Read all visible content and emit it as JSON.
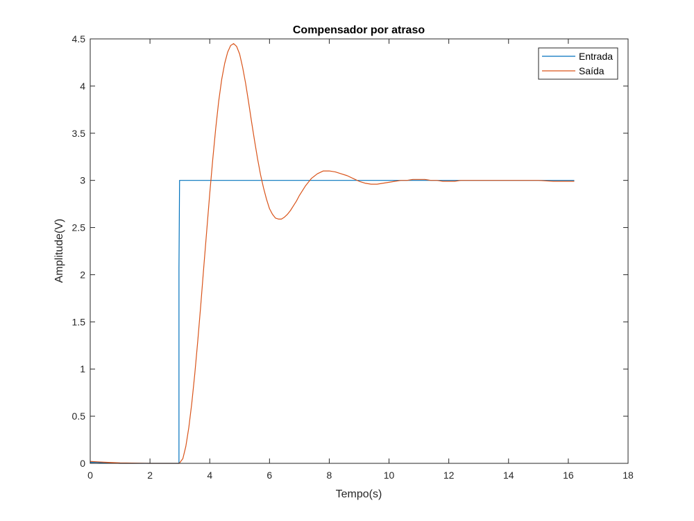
{
  "chart_data": {
    "type": "line",
    "title": "Compensador por atraso",
    "xlabel": "Tempo(s)",
    "ylabel": "Amplitude(V)",
    "xlim": [
      0,
      18
    ],
    "ylim": [
      0,
      4.5
    ],
    "xticks": [
      0,
      2,
      4,
      6,
      8,
      10,
      12,
      14,
      16,
      18
    ],
    "yticks": [
      0,
      0.5,
      1,
      1.5,
      2,
      2.5,
      3,
      3.5,
      4,
      4.5
    ],
    "grid": false,
    "legend_position": "top-right",
    "series": [
      {
        "name": "Entrada",
        "color": "#0072BD",
        "x": [
          0,
          0.2,
          0.5,
          1.0,
          2.0,
          2.95,
          2.97,
          2.97,
          2.99,
          16.2
        ],
        "y": [
          0.01,
          0.01,
          0.005,
          0.0,
          0.0,
          0.0,
          0.0,
          2.07,
          3.0,
          3.0
        ]
      },
      {
        "name": "Saída",
        "color": "#D95319",
        "x": [
          0,
          0.3,
          0.6,
          1.0,
          2.0,
          2.98,
          3.1,
          3.2,
          3.3,
          3.4,
          3.5,
          3.6,
          3.7,
          3.8,
          3.9,
          4.0,
          4.1,
          4.2,
          4.3,
          4.4,
          4.5,
          4.6,
          4.7,
          4.8,
          4.9,
          5.0,
          5.1,
          5.2,
          5.3,
          5.4,
          5.5,
          5.6,
          5.7,
          5.8,
          5.9,
          6.0,
          6.1,
          6.2,
          6.3,
          6.4,
          6.5,
          6.6,
          6.7,
          6.8,
          6.9,
          7.0,
          7.2,
          7.4,
          7.6,
          7.8,
          8.0,
          8.2,
          8.4,
          8.6,
          8.8,
          9.0,
          9.2,
          9.4,
          9.6,
          9.8,
          10.0,
          10.2,
          10.4,
          10.6,
          10.8,
          11.0,
          11.2,
          11.4,
          11.6,
          11.8,
          12.0,
          12.2,
          12.4,
          12.6,
          12.8,
          13.0,
          13.5,
          14.0,
          14.5,
          15.0,
          15.5,
          16.0,
          16.2
        ],
        "y": [
          0.02,
          0.015,
          0.01,
          0.005,
          0.0,
          0.0,
          0.05,
          0.18,
          0.38,
          0.64,
          0.95,
          1.3,
          1.68,
          2.08,
          2.47,
          2.86,
          3.22,
          3.55,
          3.84,
          4.07,
          4.24,
          4.36,
          4.43,
          4.45,
          4.42,
          4.34,
          4.2,
          4.03,
          3.83,
          3.62,
          3.42,
          3.23,
          3.06,
          2.92,
          2.8,
          2.7,
          2.64,
          2.6,
          2.59,
          2.59,
          2.61,
          2.64,
          2.68,
          2.73,
          2.78,
          2.84,
          2.94,
          3.02,
          3.07,
          3.1,
          3.1,
          3.09,
          3.07,
          3.05,
          3.02,
          2.99,
          2.97,
          2.96,
          2.96,
          2.97,
          2.98,
          2.99,
          3.0,
          3.0,
          3.01,
          3.01,
          3.01,
          3.0,
          3.0,
          2.99,
          2.99,
          2.99,
          3.0,
          3.0,
          3.0,
          3.0,
          3.0,
          3.0,
          3.0,
          3.0,
          2.99,
          2.99,
          2.99
        ]
      }
    ]
  }
}
